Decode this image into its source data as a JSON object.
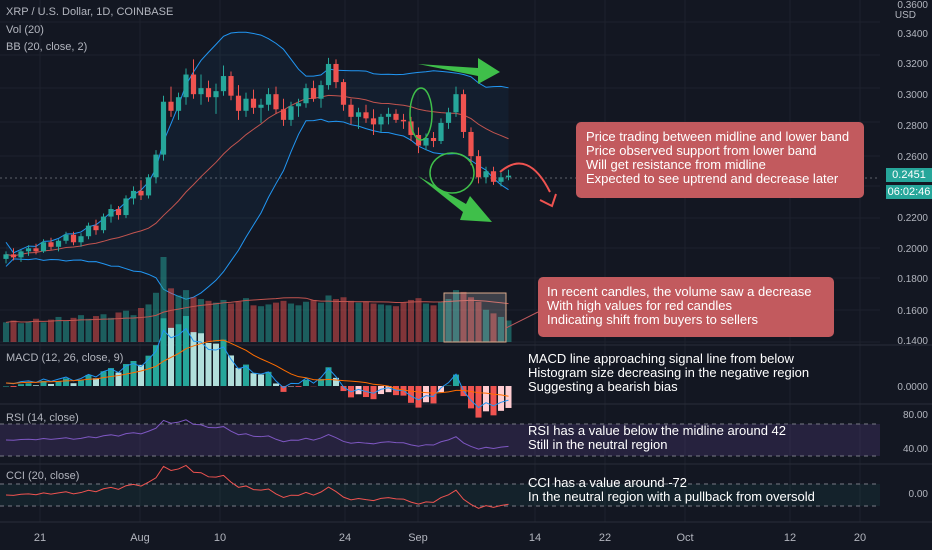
{
  "header": {
    "symbol": "XRP / U.S. Dollar, 1D, COINBASE",
    "vol": "Vol (20)",
    "bb": "BB (20, close, 2)",
    "currency": "USD"
  },
  "price_axis": {
    "ticks": [
      "0.3600",
      "0.3400",
      "0.3200",
      "0.3000",
      "0.2800",
      "0.2600",
      "0.2200",
      "0.2000",
      "0.1800",
      "0.1600",
      "0.1400"
    ],
    "last_price": "0.2451",
    "countdown": "06:02:46"
  },
  "macd": {
    "title": "MACD (12, 26, close, 9)",
    "tick": "0.0000",
    "note": "MACD line approaching signal line from below\nHistogram size decreasing in the negative region\nSuggesting a bearish bias"
  },
  "rsi": {
    "title": "RSI (14, close)",
    "ticks": [
      "80.00",
      "40.00"
    ],
    "note": "RSI has a value below the midline around 42\nStill in the neutral region"
  },
  "cci": {
    "title": "CCI (20, close)",
    "tick": "0.00",
    "note": "CCI has a value around -72\nIn the neutral region with a pullback from oversold"
  },
  "callouts": {
    "price": "Price trading between midline and lower band\nPrice observed support from lower band\nWill get resistance from midline\nExpected to see uptrend and decrease later",
    "volume": "In recent candles, the volume saw a decrease\nWith high values for red candles\nIndicating shift from buyers to sellers"
  },
  "time_axis": [
    "21",
    "Aug",
    "10",
    "24",
    "Sep",
    "14",
    "22",
    "Oct",
    "12",
    "20"
  ],
  "colors": {
    "up": "#26a69a",
    "down": "#ef5350",
    "bb": "#2196f3",
    "callout": "#c25a5e",
    "arrow": "#3fbf4a"
  },
  "chart_data": {
    "type": "candlestick",
    "ylim": [
      0.135,
      0.36
    ],
    "ohlc": [
      [
        0.19,
        0.195,
        0.187,
        0.193
      ],
      [
        0.193,
        0.197,
        0.189,
        0.191
      ],
      [
        0.191,
        0.196,
        0.188,
        0.195
      ],
      [
        0.195,
        0.199,
        0.192,
        0.197
      ],
      [
        0.197,
        0.2,
        0.193,
        0.195
      ],
      [
        0.195,
        0.203,
        0.194,
        0.201
      ],
      [
        0.201,
        0.204,
        0.196,
        0.198
      ],
      [
        0.198,
        0.203,
        0.195,
        0.202
      ],
      [
        0.202,
        0.208,
        0.2,
        0.206
      ],
      [
        0.206,
        0.208,
        0.199,
        0.201
      ],
      [
        0.201,
        0.207,
        0.198,
        0.205
      ],
      [
        0.205,
        0.214,
        0.203,
        0.212
      ],
      [
        0.212,
        0.216,
        0.206,
        0.209
      ],
      [
        0.209,
        0.22,
        0.207,
        0.218
      ],
      [
        0.218,
        0.226,
        0.214,
        0.223
      ],
      [
        0.223,
        0.225,
        0.216,
        0.219
      ],
      [
        0.219,
        0.232,
        0.217,
        0.23
      ],
      [
        0.23,
        0.238,
        0.226,
        0.235
      ],
      [
        0.235,
        0.242,
        0.229,
        0.232
      ],
      [
        0.232,
        0.246,
        0.23,
        0.244
      ],
      [
        0.244,
        0.262,
        0.24,
        0.259
      ],
      [
        0.259,
        0.298,
        0.255,
        0.294
      ],
      [
        0.294,
        0.304,
        0.284,
        0.288
      ],
      [
        0.288,
        0.3,
        0.282,
        0.297
      ],
      [
        0.297,
        0.316,
        0.292,
        0.312
      ],
      [
        0.312,
        0.322,
        0.296,
        0.299
      ],
      [
        0.299,
        0.312,
        0.292,
        0.303
      ],
      [
        0.303,
        0.308,
        0.294,
        0.297
      ],
      [
        0.297,
        0.306,
        0.286,
        0.301
      ],
      [
        0.301,
        0.318,
        0.298,
        0.311
      ],
      [
        0.311,
        0.314,
        0.295,
        0.298
      ],
      [
        0.298,
        0.305,
        0.282,
        0.288
      ],
      [
        0.288,
        0.3,
        0.284,
        0.296
      ],
      [
        0.296,
        0.302,
        0.286,
        0.29
      ],
      [
        0.29,
        0.296,
        0.28,
        0.292
      ],
      [
        0.292,
        0.303,
        0.288,
        0.299
      ],
      [
        0.299,
        0.304,
        0.286,
        0.289
      ],
      [
        0.289,
        0.296,
        0.278,
        0.282
      ],
      [
        0.282,
        0.294,
        0.278,
        0.291
      ],
      [
        0.291,
        0.296,
        0.284,
        0.293
      ],
      [
        0.293,
        0.306,
        0.29,
        0.303
      ],
      [
        0.303,
        0.308,
        0.294,
        0.296
      ],
      [
        0.296,
        0.308,
        0.29,
        0.305
      ],
      [
        0.305,
        0.323,
        0.302,
        0.319
      ],
      [
        0.319,
        0.322,
        0.303,
        0.307
      ],
      [
        0.307,
        0.309,
        0.288,
        0.292
      ],
      [
        0.292,
        0.296,
        0.279,
        0.284
      ],
      [
        0.284,
        0.29,
        0.276,
        0.287
      ],
      [
        0.287,
        0.292,
        0.28,
        0.283
      ],
      [
        0.283,
        0.289,
        0.272,
        0.279
      ],
      [
        0.279,
        0.286,
        0.274,
        0.284
      ],
      [
        0.284,
        0.29,
        0.279,
        0.286
      ],
      [
        0.286,
        0.289,
        0.28,
        0.282
      ],
      [
        0.282,
        0.286,
        0.276,
        0.281
      ],
      [
        0.281,
        0.284,
        0.268,
        0.272
      ],
      [
        0.272,
        0.277,
        0.26,
        0.265
      ],
      [
        0.265,
        0.273,
        0.262,
        0.27
      ],
      [
        0.27,
        0.274,
        0.264,
        0.268
      ],
      [
        0.268,
        0.283,
        0.266,
        0.28
      ],
      [
        0.28,
        0.29,
        0.276,
        0.287
      ],
      [
        0.287,
        0.304,
        0.284,
        0.299
      ],
      [
        0.299,
        0.302,
        0.27,
        0.274
      ],
      [
        0.274,
        0.277,
        0.252,
        0.258
      ],
      [
        0.258,
        0.262,
        0.24,
        0.244
      ],
      [
        0.244,
        0.251,
        0.24,
        0.248
      ],
      [
        0.248,
        0.251,
        0.239,
        0.241
      ],
      [
        0.241,
        0.247,
        0.238,
        0.244
      ],
      [
        0.244,
        0.249,
        0.242,
        0.2451
      ]
    ],
    "volume": [
      22,
      24,
      21,
      23,
      26,
      22,
      25,
      28,
      24,
      27,
      30,
      26,
      29,
      31,
      27,
      33,
      35,
      30,
      38,
      42,
      55,
      95,
      60,
      52,
      58,
      50,
      48,
      46,
      44,
      47,
      43,
      45,
      49,
      41,
      40,
      42,
      44,
      46,
      43,
      41,
      45,
      47,
      44,
      52,
      48,
      50,
      46,
      44,
      45,
      43,
      42,
      41,
      40,
      44,
      47,
      49,
      43,
      41,
      45,
      48,
      58,
      56,
      50,
      45,
      36,
      32,
      28,
      24
    ]
  }
}
